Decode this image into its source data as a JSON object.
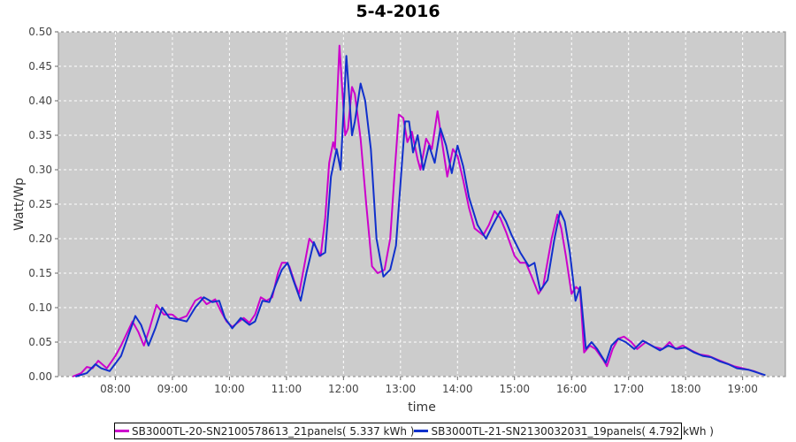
{
  "chart_data": {
    "type": "line",
    "title": "5-4-2016",
    "xlabel": "time",
    "ylabel": "Watt/Wp",
    "xlim": [
      7.0,
      19.75
    ],
    "ylim": [
      0,
      0.5
    ],
    "x_ticks": [
      "08:00",
      "09:00",
      "10:00",
      "11:00",
      "12:00",
      "13:00",
      "14:00",
      "15:00",
      "16:00",
      "17:00",
      "18:00",
      "19:00"
    ],
    "x_tick_values": [
      8,
      9,
      10,
      11,
      12,
      13,
      14,
      15,
      16,
      17,
      18,
      19
    ],
    "y_ticks": [
      "0.00",
      "0.05",
      "0.10",
      "0.15",
      "0.20",
      "0.25",
      "0.30",
      "0.35",
      "0.40",
      "0.45",
      "0.50"
    ],
    "y_tick_values": [
      0,
      0.05,
      0.1,
      0.15,
      0.2,
      0.25,
      0.3,
      0.35,
      0.4,
      0.45,
      0.5
    ],
    "grid": true,
    "legend_position": "bottom",
    "background_color": "#cccccc",
    "series": [
      {
        "name": "SB3000TL-20-SN2100578613_21panels( 5.337 kWh )",
        "color": "#cc00cc",
        "points": [
          [
            7.25,
            0.0
          ],
          [
            7.4,
            0.005
          ],
          [
            7.5,
            0.014
          ],
          [
            7.6,
            0.012
          ],
          [
            7.7,
            0.023
          ],
          [
            7.85,
            0.012
          ],
          [
            8.0,
            0.03
          ],
          [
            8.1,
            0.045
          ],
          [
            8.3,
            0.08
          ],
          [
            8.4,
            0.065
          ],
          [
            8.5,
            0.045
          ],
          [
            8.6,
            0.07
          ],
          [
            8.72,
            0.104
          ],
          [
            8.85,
            0.09
          ],
          [
            9.0,
            0.09
          ],
          [
            9.1,
            0.083
          ],
          [
            9.25,
            0.088
          ],
          [
            9.4,
            0.11
          ],
          [
            9.5,
            0.115
          ],
          [
            9.6,
            0.105
          ],
          [
            9.75,
            0.112
          ],
          [
            9.85,
            0.095
          ],
          [
            9.95,
            0.08
          ],
          [
            10.05,
            0.072
          ],
          [
            10.25,
            0.085
          ],
          [
            10.35,
            0.078
          ],
          [
            10.45,
            0.09
          ],
          [
            10.55,
            0.115
          ],
          [
            10.65,
            0.11
          ],
          [
            10.75,
            0.115
          ],
          [
            10.85,
            0.15
          ],
          [
            10.92,
            0.165
          ],
          [
            11.0,
            0.165
          ],
          [
            11.05,
            0.16
          ],
          [
            11.15,
            0.135
          ],
          [
            11.22,
            0.12
          ],
          [
            11.3,
            0.155
          ],
          [
            11.4,
            0.2
          ],
          [
            11.5,
            0.19
          ],
          [
            11.6,
            0.175
          ],
          [
            11.68,
            0.23
          ],
          [
            11.75,
            0.31
          ],
          [
            11.82,
            0.34
          ],
          [
            11.85,
            0.33
          ],
          [
            11.93,
            0.48
          ],
          [
            12.03,
            0.35
          ],
          [
            12.08,
            0.36
          ],
          [
            12.15,
            0.42
          ],
          [
            12.2,
            0.41
          ],
          [
            12.3,
            0.345
          ],
          [
            12.4,
            0.25
          ],
          [
            12.5,
            0.16
          ],
          [
            12.6,
            0.15
          ],
          [
            12.72,
            0.155
          ],
          [
            12.82,
            0.2
          ],
          [
            12.9,
            0.3
          ],
          [
            12.97,
            0.38
          ],
          [
            13.05,
            0.375
          ],
          [
            13.12,
            0.34
          ],
          [
            13.2,
            0.355
          ],
          [
            13.3,
            0.315
          ],
          [
            13.35,
            0.3
          ],
          [
            13.45,
            0.345
          ],
          [
            13.55,
            0.33
          ],
          [
            13.65,
            0.385
          ],
          [
            13.72,
            0.345
          ],
          [
            13.82,
            0.29
          ],
          [
            13.92,
            0.33
          ],
          [
            14.0,
            0.32
          ],
          [
            14.1,
            0.285
          ],
          [
            14.2,
            0.245
          ],
          [
            14.3,
            0.215
          ],
          [
            14.45,
            0.205
          ],
          [
            14.55,
            0.22
          ],
          [
            14.65,
            0.24
          ],
          [
            14.75,
            0.23
          ],
          [
            14.85,
            0.21
          ],
          [
            15.0,
            0.175
          ],
          [
            15.1,
            0.165
          ],
          [
            15.2,
            0.165
          ],
          [
            15.3,
            0.145
          ],
          [
            15.42,
            0.12
          ],
          [
            15.5,
            0.13
          ],
          [
            15.65,
            0.2
          ],
          [
            15.75,
            0.235
          ],
          [
            15.82,
            0.215
          ],
          [
            15.9,
            0.175
          ],
          [
            16.0,
            0.12
          ],
          [
            16.08,
            0.13
          ],
          [
            16.15,
            0.125
          ],
          [
            16.22,
            0.035
          ],
          [
            16.32,
            0.045
          ],
          [
            16.42,
            0.04
          ],
          [
            16.55,
            0.025
          ],
          [
            16.62,
            0.015
          ],
          [
            16.72,
            0.04
          ],
          [
            16.82,
            0.055
          ],
          [
            16.92,
            0.058
          ],
          [
            17.05,
            0.05
          ],
          [
            17.15,
            0.04
          ],
          [
            17.3,
            0.05
          ],
          [
            17.45,
            0.043
          ],
          [
            17.6,
            0.04
          ],
          [
            17.72,
            0.05
          ],
          [
            17.82,
            0.04
          ],
          [
            17.95,
            0.045
          ],
          [
            18.1,
            0.038
          ],
          [
            18.25,
            0.032
          ],
          [
            18.4,
            0.03
          ],
          [
            18.55,
            0.025
          ],
          [
            18.7,
            0.02
          ],
          [
            18.85,
            0.015
          ],
          [
            19.0,
            0.012
          ],
          [
            19.2,
            0.008
          ],
          [
            19.35,
            0.003
          ]
        ]
      },
      {
        "name": "SB3000TL-21-SN2130032031_19panels( 4.792 kWh )",
        "color": "#1030cc",
        "points": [
          [
            7.3,
            0.0
          ],
          [
            7.5,
            0.005
          ],
          [
            7.65,
            0.018
          ],
          [
            7.75,
            0.012
          ],
          [
            7.9,
            0.008
          ],
          [
            8.1,
            0.03
          ],
          [
            8.25,
            0.065
          ],
          [
            8.35,
            0.088
          ],
          [
            8.45,
            0.075
          ],
          [
            8.58,
            0.045
          ],
          [
            8.7,
            0.07
          ],
          [
            8.82,
            0.1
          ],
          [
            8.95,
            0.085
          ],
          [
            9.1,
            0.083
          ],
          [
            9.25,
            0.08
          ],
          [
            9.4,
            0.1
          ],
          [
            9.55,
            0.115
          ],
          [
            9.7,
            0.108
          ],
          [
            9.82,
            0.11
          ],
          [
            9.92,
            0.085
          ],
          [
            10.05,
            0.07
          ],
          [
            10.2,
            0.085
          ],
          [
            10.35,
            0.075
          ],
          [
            10.45,
            0.08
          ],
          [
            10.58,
            0.11
          ],
          [
            10.7,
            0.108
          ],
          [
            10.82,
            0.135
          ],
          [
            10.92,
            0.155
          ],
          [
            11.02,
            0.165
          ],
          [
            11.12,
            0.14
          ],
          [
            11.25,
            0.11
          ],
          [
            11.35,
            0.15
          ],
          [
            11.48,
            0.195
          ],
          [
            11.58,
            0.175
          ],
          [
            11.68,
            0.18
          ],
          [
            11.78,
            0.29
          ],
          [
            11.88,
            0.33
          ],
          [
            11.95,
            0.3
          ],
          [
            12.05,
            0.465
          ],
          [
            12.15,
            0.35
          ],
          [
            12.2,
            0.37
          ],
          [
            12.3,
            0.425
          ],
          [
            12.38,
            0.4
          ],
          [
            12.48,
            0.33
          ],
          [
            12.58,
            0.2
          ],
          [
            12.7,
            0.145
          ],
          [
            12.82,
            0.155
          ],
          [
            12.92,
            0.19
          ],
          [
            13.0,
            0.28
          ],
          [
            13.08,
            0.37
          ],
          [
            13.15,
            0.37
          ],
          [
            13.22,
            0.325
          ],
          [
            13.3,
            0.35
          ],
          [
            13.4,
            0.3
          ],
          [
            13.5,
            0.335
          ],
          [
            13.6,
            0.31
          ],
          [
            13.7,
            0.36
          ],
          [
            13.8,
            0.335
          ],
          [
            13.9,
            0.295
          ],
          [
            14.0,
            0.335
          ],
          [
            14.1,
            0.305
          ],
          [
            14.2,
            0.26
          ],
          [
            14.35,
            0.22
          ],
          [
            14.5,
            0.2
          ],
          [
            14.62,
            0.22
          ],
          [
            14.75,
            0.24
          ],
          [
            14.85,
            0.225
          ],
          [
            14.95,
            0.205
          ],
          [
            15.1,
            0.18
          ],
          [
            15.25,
            0.16
          ],
          [
            15.35,
            0.165
          ],
          [
            15.45,
            0.125
          ],
          [
            15.58,
            0.14
          ],
          [
            15.7,
            0.2
          ],
          [
            15.8,
            0.24
          ],
          [
            15.88,
            0.225
          ],
          [
            15.97,
            0.18
          ],
          [
            16.07,
            0.11
          ],
          [
            16.15,
            0.13
          ],
          [
            16.25,
            0.04
          ],
          [
            16.35,
            0.05
          ],
          [
            16.45,
            0.04
          ],
          [
            16.6,
            0.02
          ],
          [
            16.7,
            0.045
          ],
          [
            16.82,
            0.055
          ],
          [
            16.95,
            0.05
          ],
          [
            17.1,
            0.04
          ],
          [
            17.25,
            0.052
          ],
          [
            17.4,
            0.045
          ],
          [
            17.55,
            0.038
          ],
          [
            17.7,
            0.045
          ],
          [
            17.85,
            0.04
          ],
          [
            18.0,
            0.042
          ],
          [
            18.15,
            0.035
          ],
          [
            18.3,
            0.03
          ],
          [
            18.45,
            0.028
          ],
          [
            18.6,
            0.022
          ],
          [
            18.75,
            0.018
          ],
          [
            18.9,
            0.012
          ],
          [
            19.1,
            0.01
          ],
          [
            19.25,
            0.006
          ],
          [
            19.4,
            0.002
          ]
        ]
      }
    ]
  }
}
